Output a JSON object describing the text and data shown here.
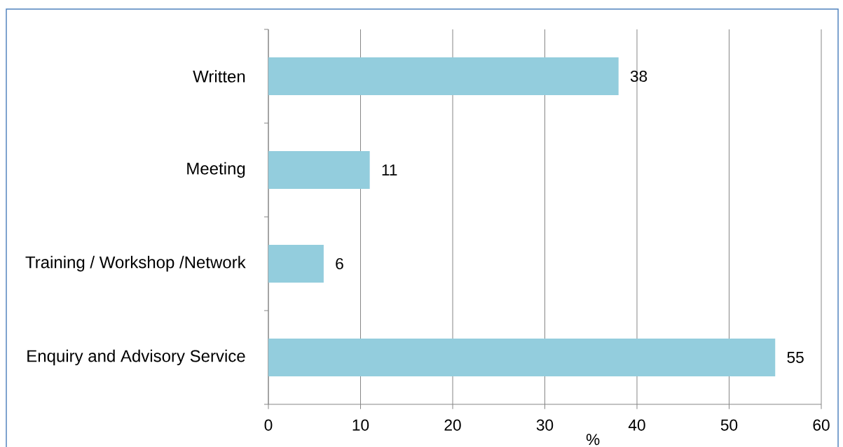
{
  "chart_data": {
    "type": "bar",
    "orientation": "horizontal",
    "categories": [
      "Written",
      "Meeting",
      "Training / Workshop /Network",
      "Enquiry and Advisory Service"
    ],
    "values": [
      38,
      11,
      6,
      55
    ],
    "color": "#93cddd",
    "xlabel": "%",
    "xlim": [
      0,
      60
    ],
    "xticks": [
      0,
      10,
      20,
      30,
      40,
      50,
      60
    ],
    "grid": "x",
    "data_labels": true
  }
}
